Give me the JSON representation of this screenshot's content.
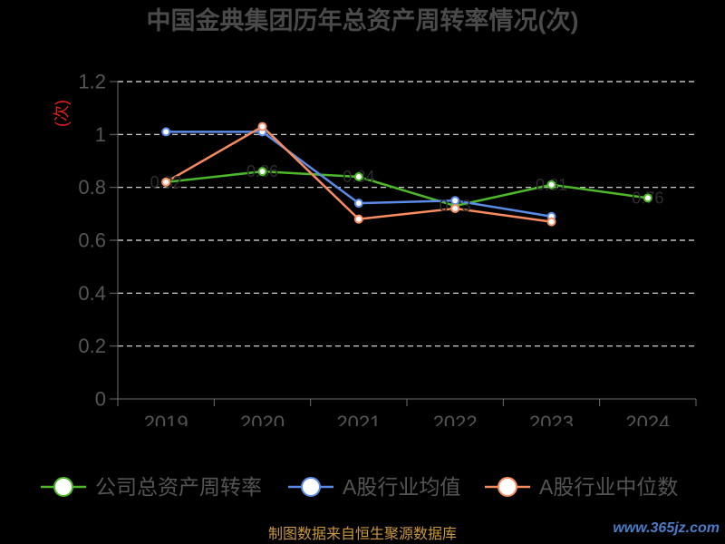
{
  "chart_data": {
    "type": "line",
    "title": "中国金典集团历年总资产周转率情况(次)",
    "ylabel": "(次)",
    "xlabel": "",
    "categories": [
      "2019",
      "2020",
      "2021",
      "2022",
      "2023",
      "2024"
    ],
    "ylim": [
      0,
      1.2
    ],
    "yticks": [
      0,
      0.2,
      0.4,
      0.6,
      0.8,
      1,
      1.2
    ],
    "ytick_labels": [
      "0",
      "0.2",
      "0.4",
      "0.6",
      "0.8",
      "1",
      "1.2"
    ],
    "grid": true,
    "legend_position": "bottom",
    "series": [
      {
        "name": "公司总资产周转率",
        "color": "#4cb82a",
        "labels": true,
        "values": [
          0.82,
          0.86,
          0.84,
          0.73,
          0.81,
          0.76
        ]
      },
      {
        "name": "A股行业均值",
        "color": "#5a8be6",
        "labels": false,
        "values": [
          1.01,
          1.01,
          0.74,
          0.75,
          0.69,
          null
        ]
      },
      {
        "name": "A股行业中位数",
        "color": "#f98c5f",
        "labels": false,
        "values": [
          0.82,
          1.03,
          0.68,
          0.72,
          0.67,
          null
        ]
      }
    ]
  },
  "footer": {
    "source": "制图数据来自恒生聚源数据库",
    "watermark": "www.365jz.com"
  }
}
